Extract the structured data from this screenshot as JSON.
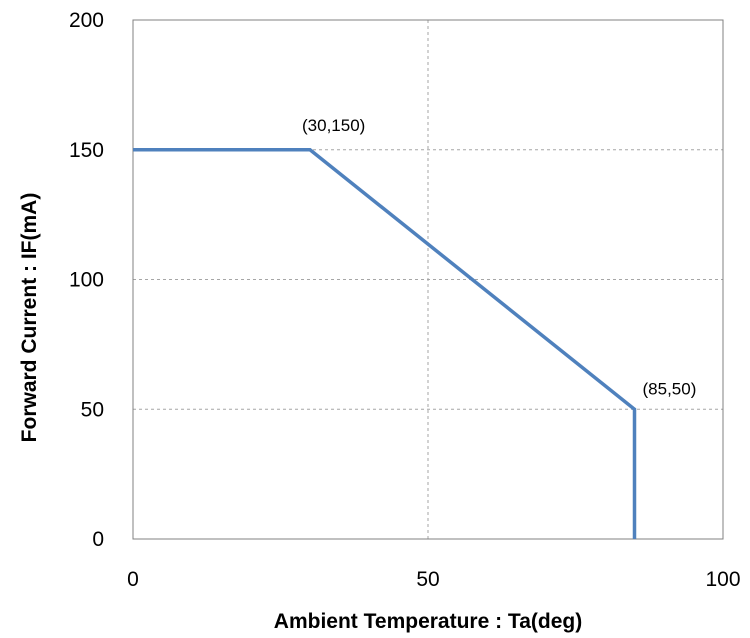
{
  "chart_data": {
    "type": "line",
    "title": "",
    "xlabel": "Ambient Temperature  : Ta(deg)",
    "ylabel": "Forward Current : IF(mA)",
    "xlim": [
      0,
      100
    ],
    "ylim": [
      0,
      200
    ],
    "x_ticks": [
      "0",
      "50",
      "100"
    ],
    "y_ticks": [
      "0",
      "50",
      "100",
      "150",
      "200"
    ],
    "grid": true,
    "series": [
      {
        "x": [
          0,
          30,
          85,
          85
        ],
        "y": [
          150,
          150,
          50,
          0
        ],
        "color": "#4F81BD"
      }
    ],
    "annotations": [
      {
        "text": "(30,150)",
        "x": 30,
        "y": 150
      },
      {
        "text": "(85,50)",
        "x": 85,
        "y": 50
      }
    ]
  }
}
